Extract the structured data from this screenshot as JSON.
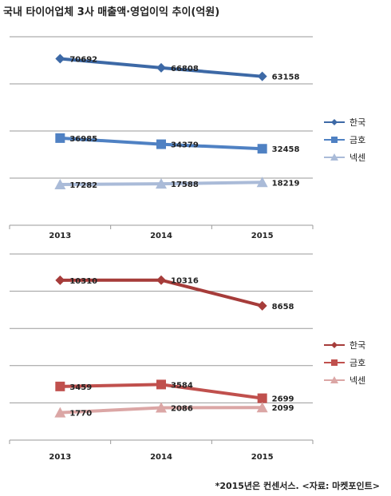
{
  "title": "국내 타이어업체 3사 매출액·영업이익 추이(억원)",
  "footnote": "*2015년은 컨센서스. <자료: 마켓포인트>",
  "chart_data": [
    {
      "type": "line",
      "x": [
        "2013",
        "2014",
        "2015"
      ],
      "ylim": [
        0,
        80000
      ],
      "grid": true,
      "legend": "right",
      "series": [
        {
          "name": "한국",
          "values": [
            70692,
            66808,
            63158
          ],
          "color": "#3D69A6",
          "marker": "diamond"
        },
        {
          "name": "금호",
          "values": [
            36985,
            34379,
            32458
          ],
          "color": "#4F81C3",
          "marker": "square"
        },
        {
          "name": "넥센",
          "values": [
            17282,
            17588,
            18219
          ],
          "color": "#AABBD8",
          "marker": "triangle"
        }
      ]
    },
    {
      "type": "line",
      "x": [
        "2013",
        "2014",
        "2015"
      ],
      "ylim": [
        0,
        12000
      ],
      "grid": true,
      "legend": "right",
      "series": [
        {
          "name": "한국",
          "values": [
            10310,
            10316,
            8658
          ],
          "color": "#A63C3A",
          "marker": "diamond"
        },
        {
          "name": "금호",
          "values": [
            3459,
            3584,
            2699
          ],
          "color": "#C0504D",
          "marker": "square"
        },
        {
          "name": "넥센",
          "values": [
            1770,
            2086,
            2099
          ],
          "color": "#DBA6A5",
          "marker": "triangle"
        }
      ]
    }
  ]
}
